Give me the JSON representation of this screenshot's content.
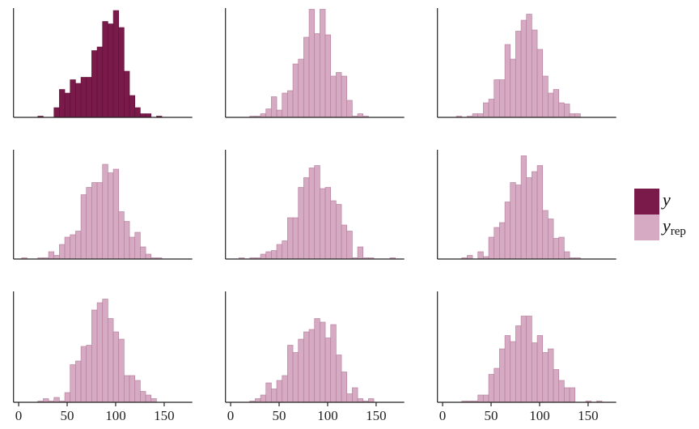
{
  "chart_data": {
    "type": "bar",
    "subtype": "histogram-facets",
    "layout": "3x3 grid",
    "xlim": [
      -5.3,
      179
    ],
    "ylim": [
      0,
      90
    ],
    "x_ticks": [
      0,
      50,
      100,
      150
    ],
    "x_tick_labels": [
      "0",
      "50",
      "100",
      "150"
    ],
    "x_ticks_shown_on": "bottom row only",
    "y_axis_labels": false,
    "grid": false,
    "bin_width": 5.56,
    "bin_origin": 3.06,
    "colors": {
      "y": "#7a1a4b",
      "y_border": "#5e0f37",
      "yrep": "#d6aac2",
      "yrep_border": "#b27a98"
    },
    "legend": {
      "placement": "right",
      "entries": [
        {
          "key": "y",
          "label": "y",
          "sub": ""
        },
        {
          "key": "yrep",
          "label": "y",
          "sub": "rep"
        }
      ]
    },
    "panels": [
      {
        "series": "y",
        "first_bin": 3,
        "counts": [
          1,
          0,
          0,
          8,
          23,
          20,
          31,
          28,
          33,
          33,
          55,
          58,
          79,
          77,
          88,
          74,
          38,
          18,
          8,
          3,
          3,
          0,
          1
        ]
      },
      {
        "series": "yrep",
        "first_bin": 3,
        "counts": [
          1,
          1,
          3,
          7,
          17,
          6,
          20,
          22,
          44,
          48,
          66,
          89,
          69,
          89,
          68,
          34,
          37,
          34,
          14,
          1,
          3,
          1
        ]
      },
      {
        "series": "yrep",
        "first_bin": 2,
        "counts": [
          1,
          0,
          1,
          3,
          3,
          12,
          15,
          31,
          31,
          60,
          48,
          71,
          80,
          85,
          72,
          56,
          34,
          20,
          23,
          12,
          11,
          3,
          3
        ]
      },
      {
        "series": "yrep",
        "first_bin": 0,
        "counts": [
          1,
          0,
          0,
          1,
          1,
          6,
          3,
          12,
          18,
          20,
          23,
          53,
          59,
          63,
          63,
          78,
          71,
          74,
          39,
          31,
          18,
          22,
          10,
          4,
          1,
          1
        ]
      },
      {
        "series": "yrep",
        "first_bin": 1,
        "counts": [
          1,
          0,
          1,
          1,
          4,
          6,
          7,
          12,
          15,
          34,
          34,
          59,
          67,
          75,
          77,
          58,
          59,
          48,
          45,
          28,
          23,
          1,
          10,
          1,
          1,
          0,
          0,
          0,
          1
        ]
      },
      {
        "series": "yrep",
        "first_bin": 3,
        "counts": [
          1,
          3,
          0,
          6,
          2,
          18,
          26,
          30,
          47,
          63,
          61,
          85,
          67,
          72,
          77,
          40,
          33,
          17,
          18,
          6,
          1,
          1
        ]
      },
      {
        "series": "yrep",
        "first_bin": 3,
        "counts": [
          1,
          3,
          1,
          4,
          1,
          8,
          31,
          34,
          46,
          47,
          76,
          82,
          85,
          69,
          58,
          52,
          22,
          22,
          18,
          9,
          6,
          3
        ]
      },
      {
        "series": "yrep",
        "first_bin": 3,
        "counts": [
          1,
          3,
          6,
          16,
          11,
          18,
          22,
          47,
          41,
          52,
          58,
          60,
          69,
          66,
          53,
          64,
          39,
          25,
          7,
          12,
          3,
          1,
          3
        ]
      },
      {
        "series": "yrep",
        "first_bin": 3,
        "counts": [
          1,
          1,
          1,
          6,
          6,
          23,
          28,
          44,
          55,
          50,
          63,
          71,
          71,
          49,
          55,
          41,
          44,
          27,
          18,
          12,
          12,
          0,
          0,
          1,
          0,
          1
        ]
      }
    ]
  }
}
